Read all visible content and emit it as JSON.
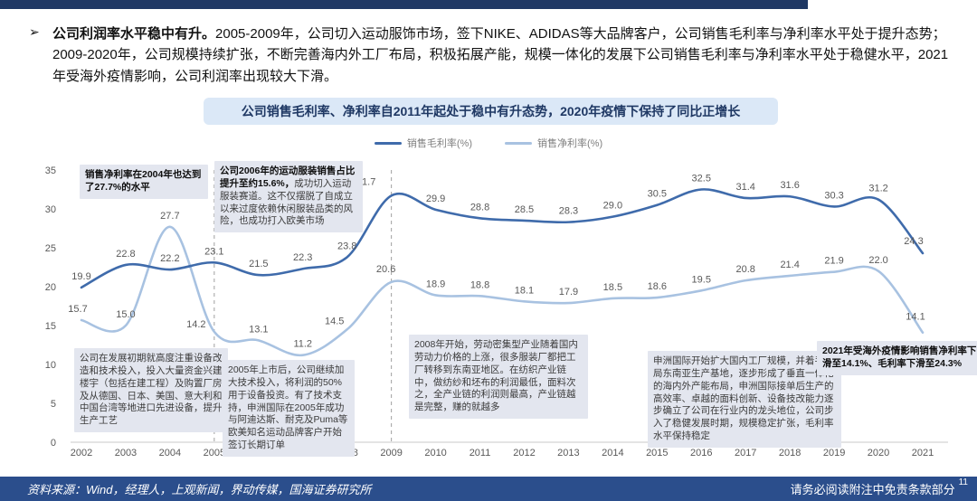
{
  "page": {
    "intro": {
      "bullet": "➢",
      "lead": "公司利润率水平稳中有升。",
      "body": "2005-2009年，公司切入运动服饰市场，签下NIKE、ADIDAS等大品牌客户，公司销售毛利率与净利率水平处于提升态势；2009-2020年，公司规模持续扩张，不断完善海内外工厂布局，积极拓展产能，规模一体化的发展下公司销售毛利率与净利率水平处于稳健水平，2021年受海外疫情影响，公司利润率出现较大下滑。"
    },
    "footer": {
      "source": "资料来源：Wind，经理人，上观新闻，界动传媒，国海证券研究所",
      "disclaimer": "请务必阅读附注中免责条款部分",
      "page_number": "11"
    }
  },
  "chart_data": {
    "type": "line",
    "title": "公司销售毛利率、净利率自2011年起处于稳中有升态势，2020年疫情下保持了同比正增长",
    "categories": [
      2002,
      2003,
      2004,
      2005,
      2006,
      2007,
      2008,
      2009,
      2010,
      2011,
      2012,
      2013,
      2014,
      2015,
      2016,
      2017,
      2018,
      2019,
      2020,
      2021
    ],
    "series": [
      {
        "name": "销售毛利率(%)",
        "color": "#3f6bab",
        "values": [
          19.9,
          22.8,
          22.2,
          23.1,
          21.5,
          22.3,
          23.8,
          31.7,
          29.9,
          28.8,
          28.5,
          28.3,
          29.0,
          30.5,
          32.5,
          31.4,
          31.6,
          30.3,
          31.2,
          24.3
        ]
      },
      {
        "name": "销售净利率(%)",
        "color": "#a8c2e1",
        "values": [
          15.7,
          15.0,
          27.7,
          14.2,
          13.1,
          11.2,
          14.5,
          20.6,
          18.9,
          18.8,
          18.1,
          17.9,
          18.5,
          18.6,
          19.5,
          20.8,
          21.4,
          21.9,
          22.0,
          14.1
        ]
      }
    ],
    "ylabel": "",
    "xlabel": "",
    "ylim": [
      0,
      35
    ],
    "ytick_step": 5,
    "grid": false,
    "legend_position": "top",
    "dashed_vlines": [
      2005,
      2009
    ],
    "annotations": [
      {
        "lead": "销售净利率在2004年也达到了27.7%的水平"
      },
      {
        "lead": "公司2006年的运动服装销售占比提升至约15.6%，",
        "text": "成功切入运动服装赛道。这不仅摆脱了自成立以来过度依赖休闲服装品类的风险，也成功打入欧美市场"
      },
      {
        "text": "公司在发展初期就高度注重设备改造和技术投入，投入大量资金兴建楼宇（包括在建工程）及购置厂房及从德国、日本、美国、意大利和中国台湾等地进口先进设备，提升生产工艺"
      },
      {
        "text": "2005年上市后，公司继续加大技术投入，将利润的50%用于设备投资。有了技术支持，申洲国际在2005年成功与阿迪达斯、耐克及Puma等欧美知名运动品牌客户开始签订长期订单"
      },
      {
        "text": "2008年开始，劳动密集型产业随着国内劳动力价格的上涨，很多服装厂都把工厂转移到东南亚地区。在纺织产业链中，做纺纱和坯布的利润最低，面料次之，全产业链的利润则最高，产业链越是完整，赚的就越多"
      },
      {
        "text": "申洲国际开始扩大国内工厂规模，并着手布局东南亚生产基地，逐步形成了垂直一体化的海内外产能布局，申洲国际接单后生产的高效率、卓越的面料创新、设备技改能力逐步确立了公司在行业内的龙头地位，公司步入了稳健发展时期，规模稳定扩张，毛利率水平保持稳定"
      },
      {
        "lead": "2021年受海外疫情影响销售净利率下滑至14.1%、毛利率下滑至24.3%"
      }
    ]
  }
}
